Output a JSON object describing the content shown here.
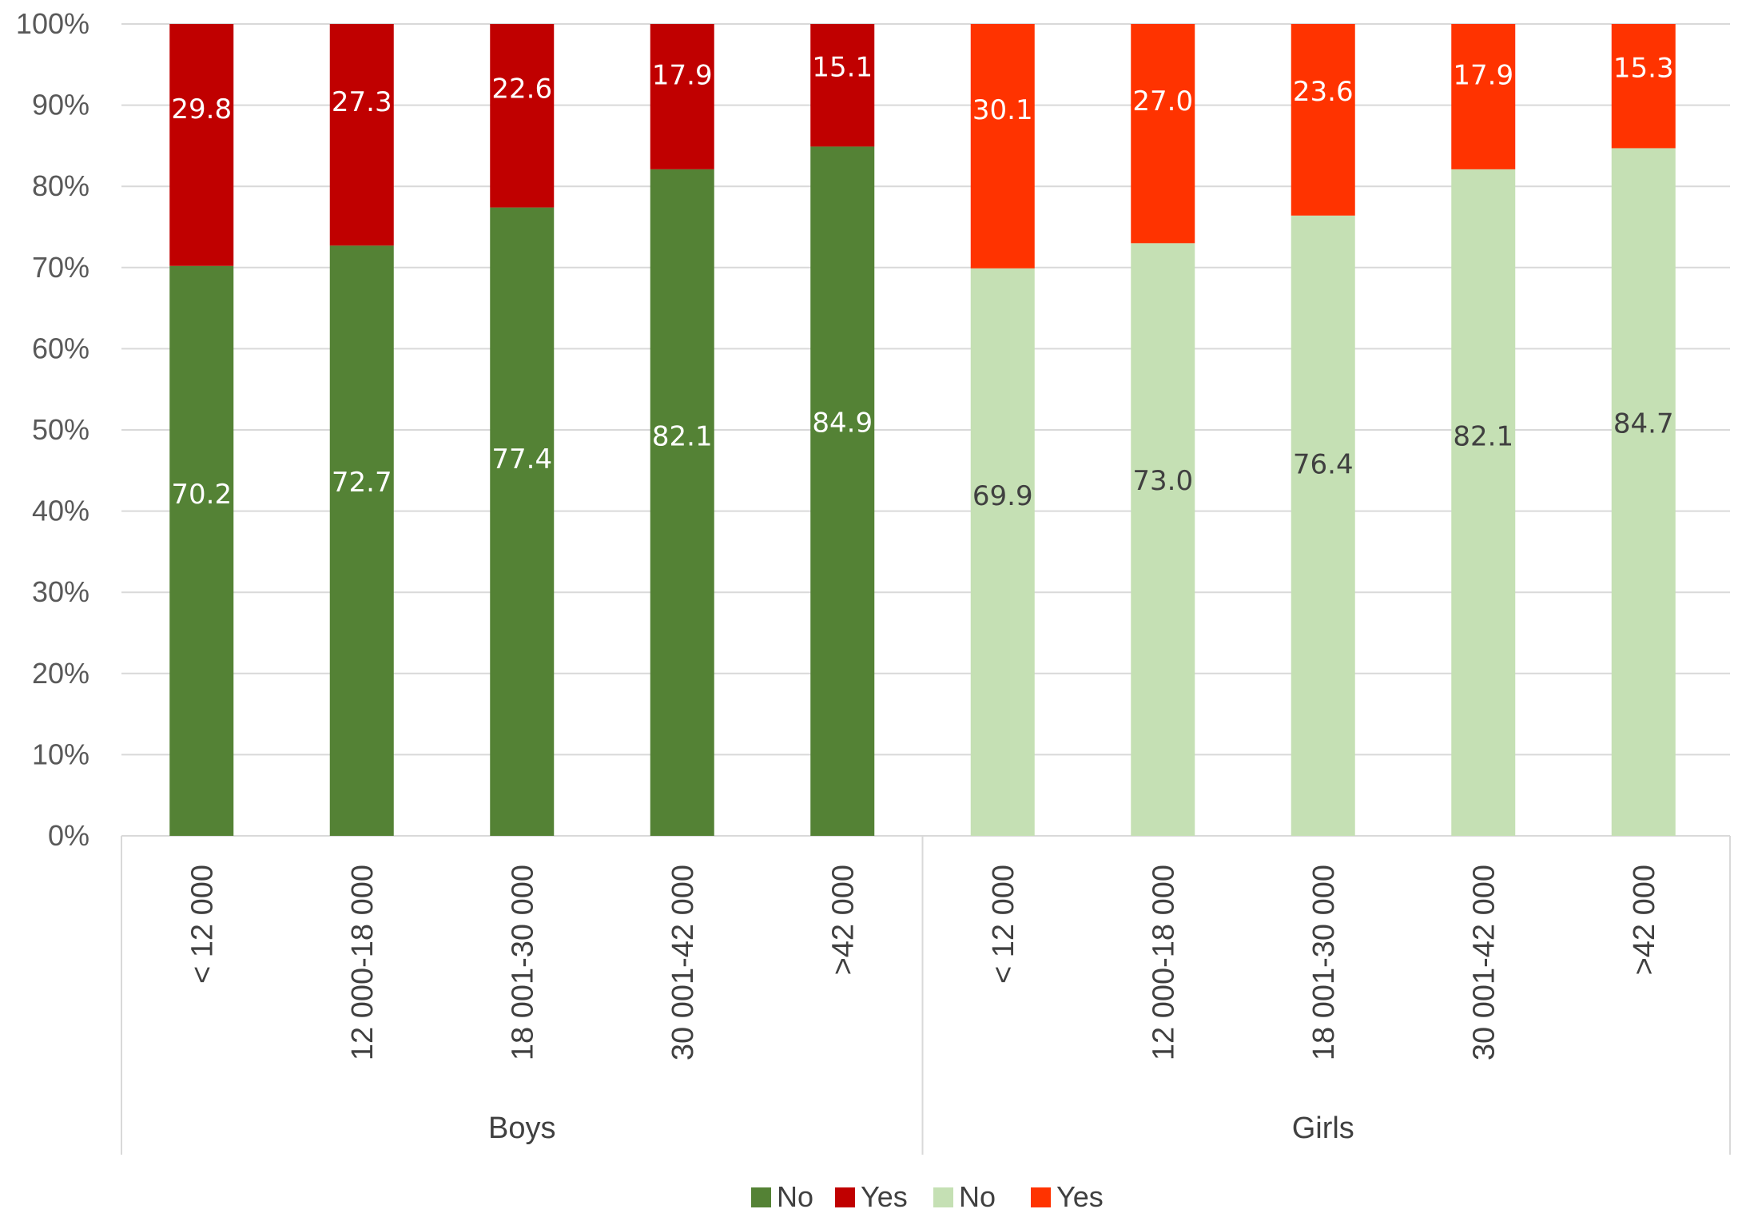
{
  "chart_data": {
    "type": "bar",
    "stacked": true,
    "percent_stacked": true,
    "title": "",
    "xlabel": "",
    "ylabel": "",
    "ylim": [
      0,
      100
    ],
    "yticks": [
      "0%",
      "10%",
      "20%",
      "30%",
      "40%",
      "50%",
      "60%",
      "70%",
      "80%",
      "90%",
      "100%"
    ],
    "grid": true,
    "legend_position": "bottom",
    "groups": [
      {
        "name": "Boys",
        "categories": [
          "< 12 000",
          "12 000-18 000",
          "18 001-30 000",
          "30 001-42 000",
          ">42 000"
        ],
        "series": [
          {
            "name": "No",
            "color": "#548235",
            "label_color": "#ffffff",
            "values": [
              70.2,
              72.7,
              77.4,
              82.1,
              84.9
            ],
            "labels": [
              "70.2",
              "72.7",
              "77.4",
              "82.1",
              "84.9"
            ]
          },
          {
            "name": "Yes",
            "color": "#c00000",
            "label_color": "#ffffff",
            "values": [
              29.8,
              27.3,
              22.6,
              17.9,
              15.1
            ],
            "labels": [
              "29.8",
              "27.3",
              "22.6",
              "17.9",
              "15.1"
            ]
          }
        ]
      },
      {
        "name": "Girls",
        "categories": [
          "< 12 000",
          "12 000-18 000",
          "18 001-30 000",
          "30 001-42 000",
          ">42 000"
        ],
        "series": [
          {
            "name": "No",
            "color": "#c5e0b4",
            "label_color": "#404040",
            "values": [
              69.9,
              73.0,
              76.4,
              82.1,
              84.7
            ],
            "labels": [
              "69.9",
              "73.0",
              "76.4",
              "82.1",
              "84.7"
            ]
          },
          {
            "name": "Yes",
            "color": "#ff3300",
            "label_color": "#ffffff",
            "values": [
              30.1,
              27.0,
              23.6,
              17.9,
              15.3
            ],
            "labels": [
              "30.1",
              "27.0",
              "23.6",
              "17.9",
              "15.3"
            ]
          }
        ]
      }
    ],
    "legend": [
      {
        "name": "No",
        "color": "#548235"
      },
      {
        "name": "Yes",
        "color": "#c00000"
      },
      {
        "name": "No",
        "color": "#c5e0b4"
      },
      {
        "name": "Yes",
        "color": "#ff3300"
      }
    ]
  }
}
